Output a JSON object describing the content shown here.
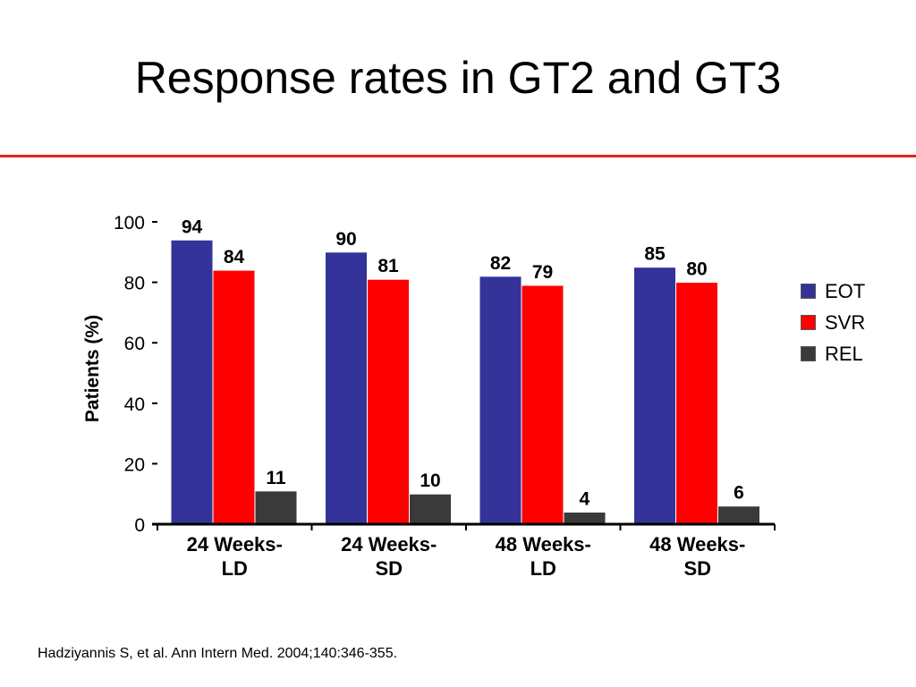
{
  "slide": {
    "title": "Response rates in GT2 and GT3",
    "citation": "Hadziyannis S, et al. Ann Intern Med. 2004;140:346-355."
  },
  "chart_data": {
    "type": "bar",
    "title": "",
    "xlabel": "",
    "ylabel": "Patients (%)",
    "ylim": [
      0,
      100
    ],
    "yticks": [
      0,
      20,
      40,
      60,
      80,
      100
    ],
    "grid": false,
    "legend_position": "right",
    "categories": [
      [
        "24 Weeks-",
        "LD"
      ],
      [
        "24 Weeks-",
        "SD"
      ],
      [
        "48 Weeks-",
        "LD"
      ],
      [
        "48 Weeks-",
        "SD"
      ]
    ],
    "series": [
      {
        "name": "EOT",
        "color": "#333399",
        "values": [
          94,
          90,
          82,
          85
        ]
      },
      {
        "name": "SVR",
        "color": "#ff0000",
        "values": [
          84,
          81,
          79,
          80
        ]
      },
      {
        "name": "REL",
        "color": "#3a3a3a",
        "values": [
          11,
          10,
          4,
          6
        ]
      }
    ]
  }
}
